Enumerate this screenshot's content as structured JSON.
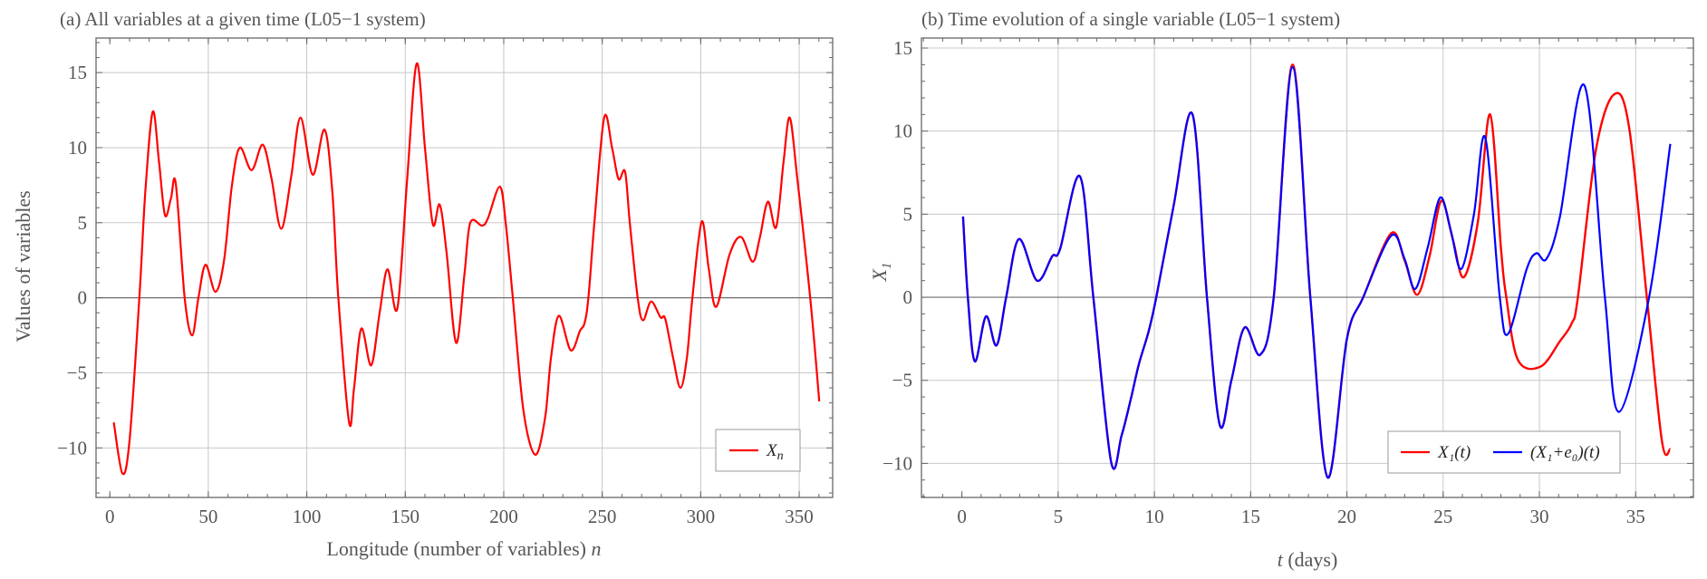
{
  "chart_data": [
    {
      "type": "line",
      "title": "(a) All variables at a given time (L05−1 system)",
      "xlabel": "Longitude (number of variables)",
      "xlabel_var": "n",
      "ylabel": "Values of variables",
      "xlim": [
        -7,
        367
      ],
      "ylim": [
        -13.3,
        17.3
      ],
      "xticks": [
        0,
        50,
        100,
        150,
        200,
        250,
        300,
        350
      ],
      "yticks": [
        -10,
        -5,
        0,
        5,
        10,
        15
      ],
      "grid": true,
      "legend_position": "bottom-right",
      "series": [
        {
          "name": "X",
          "name_sub": "n",
          "color": "#ff0000",
          "x": [
            2,
            6.4,
            10,
            15,
            18,
            21.8,
            25,
            28,
            31,
            33.5,
            38,
            41.8,
            45,
            48.6,
            53.7,
            58,
            62,
            66,
            72,
            77.6,
            82,
            87,
            92,
            96.8,
            103,
            109,
            113,
            116,
            121.5,
            124,
            127.7,
            132.7,
            137,
            141,
            146,
            151,
            155.8,
            160,
            164,
            167.5,
            171,
            175.8,
            180,
            183,
            189,
            192,
            198,
            201,
            204.6,
            210,
            216,
            221,
            224,
            228,
            234,
            238.7,
            241,
            243,
            246,
            251,
            255,
            258.3,
            261.6,
            264,
            268,
            270.7,
            274.8,
            279.6,
            282,
            286,
            289.7,
            293,
            295.8,
            300.5,
            304,
            307.9,
            314.7,
            320.5,
            326.4,
            330,
            334.1,
            338.3,
            342,
            345.2,
            349,
            355.6,
            360.2
          ],
          "y": [
            -8.3,
            -11.7,
            -9.5,
            0,
            7,
            12.4,
            9,
            5.5,
            6.6,
            7.6,
            0,
            -2.5,
            0,
            2.2,
            0.4,
            2.5,
            7.5,
            10.0,
            8.5,
            10.2,
            8,
            4.6,
            8,
            12.0,
            8.2,
            11.2,
            7,
            0,
            -8.3,
            -6,
            -2.05,
            -4.5,
            -1,
            1.9,
            -0.7,
            8,
            15.6,
            10,
            4.9,
            6.2,
            3,
            -3.0,
            1.5,
            5.0,
            4.8,
            5.3,
            7.4,
            5,
            0,
            -7.5,
            -10.45,
            -8,
            -4,
            -1.2,
            -3.5,
            -2.2,
            -1.7,
            0,
            5,
            12.0,
            10,
            7.9,
            8.4,
            5,
            0,
            -1.5,
            -0.25,
            -1.3,
            -1.4,
            -4,
            -6.0,
            -4,
            0,
            5.07,
            2,
            -0.6,
            2.9,
            4.05,
            2.4,
            4,
            6.4,
            4.7,
            9,
            12.0,
            8,
            0,
            -6.9
          ]
        }
      ]
    },
    {
      "type": "line",
      "title": "(b) Time evolution of a single variable (L05−1 system)",
      "xlabel_var": "t",
      "xlabel": "(days)",
      "ylabel": "X",
      "ylabel_sub": "1",
      "xlim": [
        -2.1,
        38.0
      ],
      "ylim": [
        -12.05,
        15.6
      ],
      "xticks": [
        0,
        5,
        10,
        15,
        20,
        25,
        30,
        35
      ],
      "yticks": [
        -10,
        -5,
        0,
        5,
        10,
        15
      ],
      "grid": true,
      "legend_position": "bottom-right",
      "series": [
        {
          "name": "X₁(t)",
          "color": "#ff0000",
          "x": [
            0.06,
            0.31,
            0.67,
            1.25,
            1.8,
            2.3,
            2.96,
            3.9,
            4.69,
            5.1,
            6.13,
            6.83,
            7.75,
            8.3,
            8.8,
            9.2,
            9.69,
            10.1,
            11.0,
            11.98,
            12.73,
            13.4,
            14.0,
            14.69,
            15.5,
            16.2,
            17.18,
            18.1,
            19.0,
            20.0,
            20.85,
            22.3,
            23.0,
            23.65,
            24.3,
            24.9,
            25.5,
            26.07,
            26.8,
            27.44,
            28.0,
            28.28,
            28.88,
            30.05,
            31.06,
            31.68,
            32.0,
            32.93,
            33.87,
            34.65,
            35.58,
            36.37,
            36.8
          ],
          "y": [
            4.86,
            0,
            -3.86,
            -1.15,
            -2.9,
            0,
            3.5,
            1.0,
            2.46,
            2.9,
            7.28,
            0,
            -9.9,
            -8.3,
            -6.0,
            -4.0,
            -2.1,
            0,
            5.5,
            11.0,
            0,
            -7.7,
            -5,
            -1.82,
            -3.46,
            0,
            14.0,
            0,
            -10.85,
            -2.5,
            0,
            3.85,
            2.2,
            0.15,
            2.5,
            5.8,
            3.5,
            1.2,
            4.5,
            11.0,
            3,
            0,
            -3.76,
            -4.18,
            -2.66,
            -1.57,
            0,
            8.83,
            12.2,
            10.3,
            0,
            -8.7,
            -9.15
          ]
        },
        {
          "name": "(X₁+e₀)(t)",
          "color": "#0000ff",
          "x": [
            0.06,
            0.31,
            0.67,
            1.25,
            1.8,
            2.3,
            2.96,
            3.9,
            4.69,
            5.1,
            6.13,
            6.83,
            7.75,
            8.3,
            8.8,
            9.2,
            9.69,
            10.1,
            11.0,
            11.98,
            12.73,
            13.4,
            14.0,
            14.69,
            15.5,
            16.2,
            17.18,
            18.1,
            19.0,
            20.0,
            20.85,
            22.3,
            23.0,
            23.55,
            24.2,
            24.85,
            25.4,
            25.94,
            26.6,
            27.19,
            27.94,
            28.38,
            29.34,
            29.84,
            30.36,
            31.06,
            32.34,
            33.4,
            34.13,
            35.7,
            36.8
          ],
          "y": [
            4.86,
            0,
            -3.86,
            -1.15,
            -2.9,
            0,
            3.5,
            1.0,
            2.46,
            2.9,
            7.28,
            0,
            -9.9,
            -8.3,
            -6.0,
            -4.0,
            -2.1,
            0,
            5.5,
            11.0,
            0,
            -7.7,
            -5,
            -1.82,
            -3.46,
            0,
            13.85,
            0,
            -10.85,
            -2.5,
            0,
            3.7,
            2.3,
            0.5,
            3,
            6.0,
            4,
            1.7,
            5,
            9.6,
            0,
            -2.2,
            1.7,
            2.65,
            2.3,
            4.8,
            12.75,
            0,
            -6.9,
            0,
            9.23
          ]
        }
      ]
    }
  ]
}
